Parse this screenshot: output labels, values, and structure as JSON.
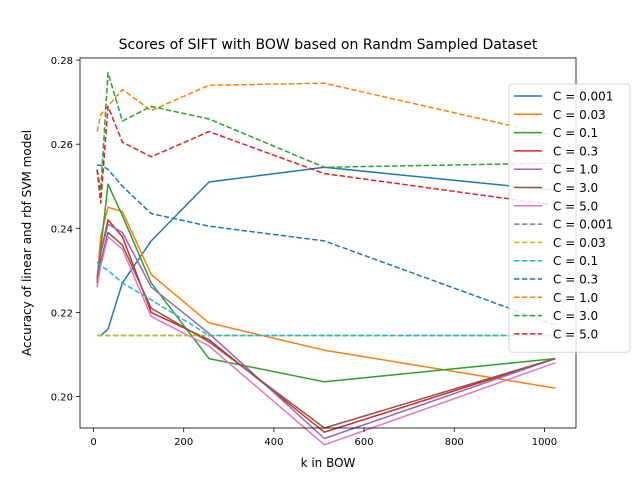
{
  "chart_data": {
    "type": "line",
    "title": "Scores of SIFT with BOW based on Randm Sampled Dataset",
    "xlabel": "k in BOW",
    "ylabel": "Accuracy of linear and rbf SVM model",
    "xlim": [
      -30,
      1070
    ],
    "ylim": [
      0.1925,
      0.2805
    ],
    "xticks": [
      0,
      200,
      400,
      600,
      800,
      1000
    ],
    "xtick_labels": [
      "0",
      "200",
      "400",
      "600",
      "800",
      "1000"
    ],
    "yticks": [
      0.2,
      0.22,
      0.24,
      0.26,
      0.28
    ],
    "ytick_labels": [
      "0.20",
      "0.22",
      "0.24",
      "0.26",
      "0.28"
    ],
    "grid": false,
    "legend_position": "right",
    "x": [
      8,
      16,
      32,
      64,
      128,
      256,
      512,
      1024
    ],
    "series": [
      {
        "name": "C = 0.001",
        "style": "solid",
        "color": "#1f77b4",
        "values": [
          0.2145,
          0.2145,
          0.216,
          0.227,
          0.237,
          0.251,
          0.2545,
          0.249
        ]
      },
      {
        "name": "C = 0.03",
        "style": "solid",
        "color": "#ff7f0e",
        "values": [
          0.228,
          0.238,
          0.245,
          0.244,
          0.229,
          0.2175,
          0.211,
          0.202
        ]
      },
      {
        "name": "C = 0.1",
        "style": "solid",
        "color": "#2ca02c",
        "values": [
          0.228,
          0.235,
          0.2505,
          0.243,
          0.227,
          0.209,
          0.2035,
          0.209
        ]
      },
      {
        "name": "C = 0.3",
        "style": "solid",
        "color": "#d62728",
        "values": [
          0.227,
          0.234,
          0.242,
          0.238,
          0.22,
          0.2135,
          0.1915,
          0.209
        ]
      },
      {
        "name": "C = 1.0",
        "style": "solid",
        "color": "#9467bd",
        "values": [
          0.227,
          0.234,
          0.241,
          0.239,
          0.226,
          0.215,
          0.19,
          0.209
        ]
      },
      {
        "name": "C = 3.0",
        "style": "solid",
        "color": "#8c564b",
        "values": [
          0.226,
          0.232,
          0.239,
          0.236,
          0.221,
          0.213,
          0.1925,
          0.209
        ]
      },
      {
        "name": "C = 5.0",
        "style": "solid",
        "color": "#e377c2",
        "values": [
          0.226,
          0.231,
          0.238,
          0.235,
          0.219,
          0.212,
          0.1885,
          0.208
        ]
      },
      {
        "name": "C = 0.001",
        "style": "dashed",
        "color": "#7f7f7f",
        "values": [
          0.2145,
          0.2145,
          0.2145,
          0.2145,
          0.2145,
          0.2145,
          0.2145,
          0.2145
        ]
      },
      {
        "name": "C = 0.03",
        "style": "dashed",
        "color": "#bcbd22",
        "values": [
          0.2145,
          0.2145,
          0.2145,
          0.2145,
          0.2145,
          0.2145,
          0.2145,
          0.2145
        ]
      },
      {
        "name": "C = 0.1",
        "style": "dashed",
        "color": "#17becf",
        "values": [
          0.232,
          0.231,
          0.23,
          0.227,
          0.223,
          0.2145,
          0.2145,
          0.2145
        ]
      },
      {
        "name": "C = 0.3",
        "style": "dashed",
        "color": "#1f77b4",
        "values": [
          0.255,
          0.255,
          0.254,
          0.25,
          0.2435,
          0.2405,
          0.237,
          0.217
        ]
      },
      {
        "name": "C = 1.0",
        "style": "dashed",
        "color": "#ff7f0e",
        "values": [
          0.263,
          0.267,
          0.269,
          0.273,
          0.268,
          0.274,
          0.2745,
          0.262
        ]
      },
      {
        "name": "C = 3.0",
        "style": "dashed",
        "color": "#2ca02c",
        "values": [
          0.254,
          0.249,
          0.277,
          0.2655,
          0.269,
          0.266,
          0.2545,
          0.2555
        ]
      },
      {
        "name": "C = 5.0",
        "style": "dashed",
        "color": "#d62728",
        "values": [
          0.254,
          0.246,
          0.269,
          0.2605,
          0.257,
          0.263,
          0.253,
          0.2455
        ]
      }
    ]
  }
}
